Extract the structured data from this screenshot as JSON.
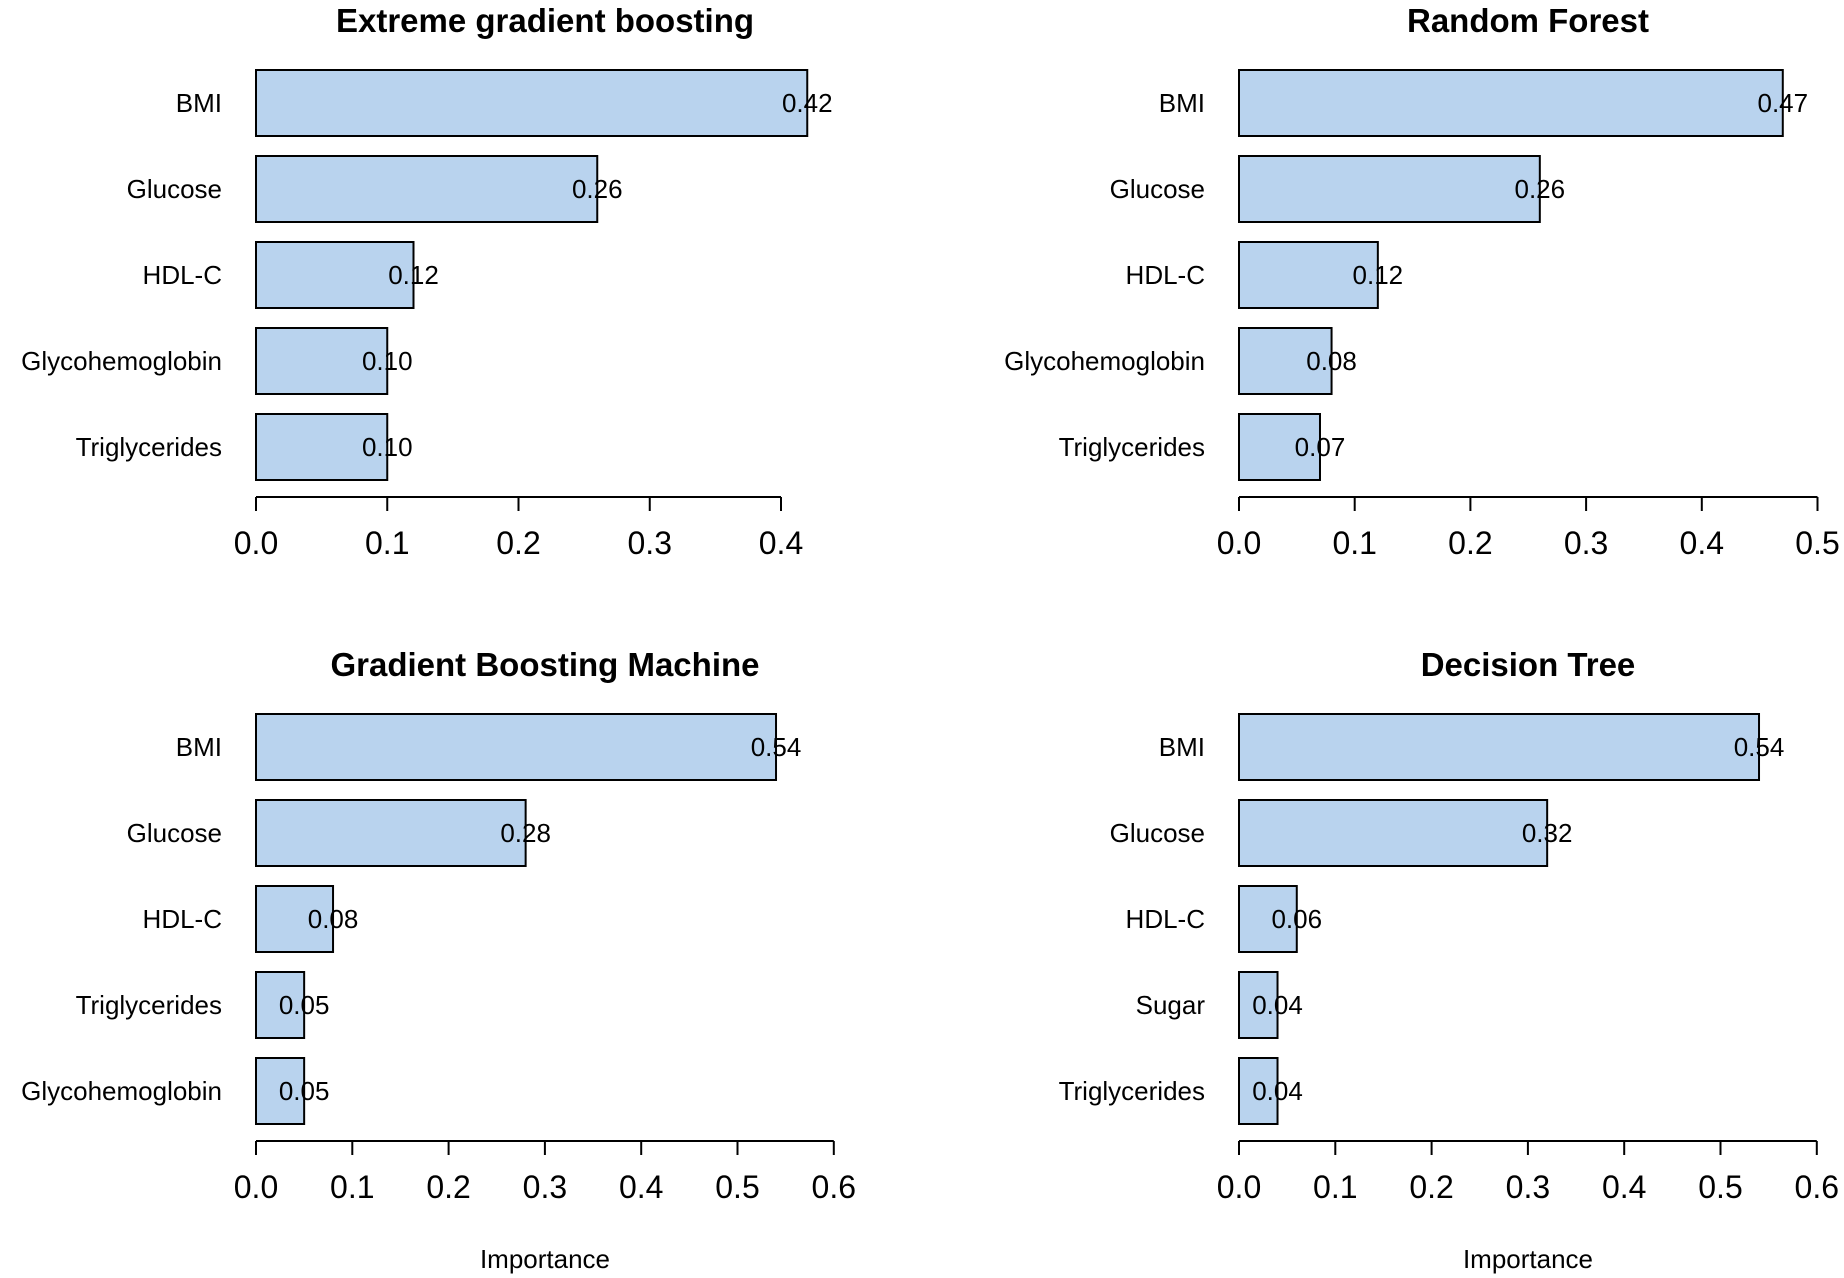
{
  "bar_color": "#b9d3ee",
  "chart_data": [
    {
      "type": "bar",
      "orientation": "horizontal",
      "title": "Extreme gradient boosting",
      "xlabel": "",
      "categories": [
        "BMI",
        "Glucose",
        "HDL-C",
        "Glycohemoglobin",
        "Triglycerides"
      ],
      "values": [
        0.42,
        0.26,
        0.12,
        0.1,
        0.1
      ],
      "value_labels": [
        "0.42",
        "0.26",
        "0.12",
        "0.10",
        "0.10"
      ],
      "xlim": [
        0,
        0.4
      ],
      "xticks": [
        "0.0",
        "0.1",
        "0.2",
        "0.3",
        "0.4"
      ]
    },
    {
      "type": "bar",
      "orientation": "horizontal",
      "title": "Random Forest",
      "xlabel": "",
      "categories": [
        "BMI",
        "Glucose",
        "HDL-C",
        "Glycohemoglobin",
        "Triglycerides"
      ],
      "values": [
        0.47,
        0.26,
        0.12,
        0.08,
        0.07
      ],
      "value_labels": [
        "0.47",
        "0.26",
        "0.12",
        "0.08",
        "0.07"
      ],
      "xlim": [
        0,
        0.5
      ],
      "xticks": [
        "0.0",
        "0.1",
        "0.2",
        "0.3",
        "0.4",
        "0.5"
      ]
    },
    {
      "type": "bar",
      "orientation": "horizontal",
      "title": "Gradient Boosting Machine",
      "xlabel": "Importance",
      "categories": [
        "BMI",
        "Glucose",
        "HDL-C",
        "Triglycerides",
        "Glycohemoglobin"
      ],
      "values": [
        0.54,
        0.28,
        0.08,
        0.05,
        0.05
      ],
      "value_labels": [
        "0.54",
        "0.28",
        "0.08",
        "0.05",
        "0.05"
      ],
      "xlim": [
        0,
        0.6
      ],
      "xticks": [
        "0.0",
        "0.1",
        "0.2",
        "0.3",
        "0.4",
        "0.5",
        "0.6"
      ]
    },
    {
      "type": "bar",
      "orientation": "horizontal",
      "title": "Decision Tree",
      "xlabel": "Importance",
      "categories": [
        "BMI",
        "Glucose",
        "HDL-C",
        "Sugar",
        "Triglycerides"
      ],
      "values": [
        0.54,
        0.32,
        0.06,
        0.04,
        0.04
      ],
      "value_labels": [
        "0.54",
        "0.32",
        "0.06",
        "0.04",
        "0.04"
      ],
      "xlim": [
        0,
        0.6
      ],
      "xticks": [
        "0.0",
        "0.1",
        "0.2",
        "0.3",
        "0.4",
        "0.5",
        "0.6"
      ]
    }
  ]
}
